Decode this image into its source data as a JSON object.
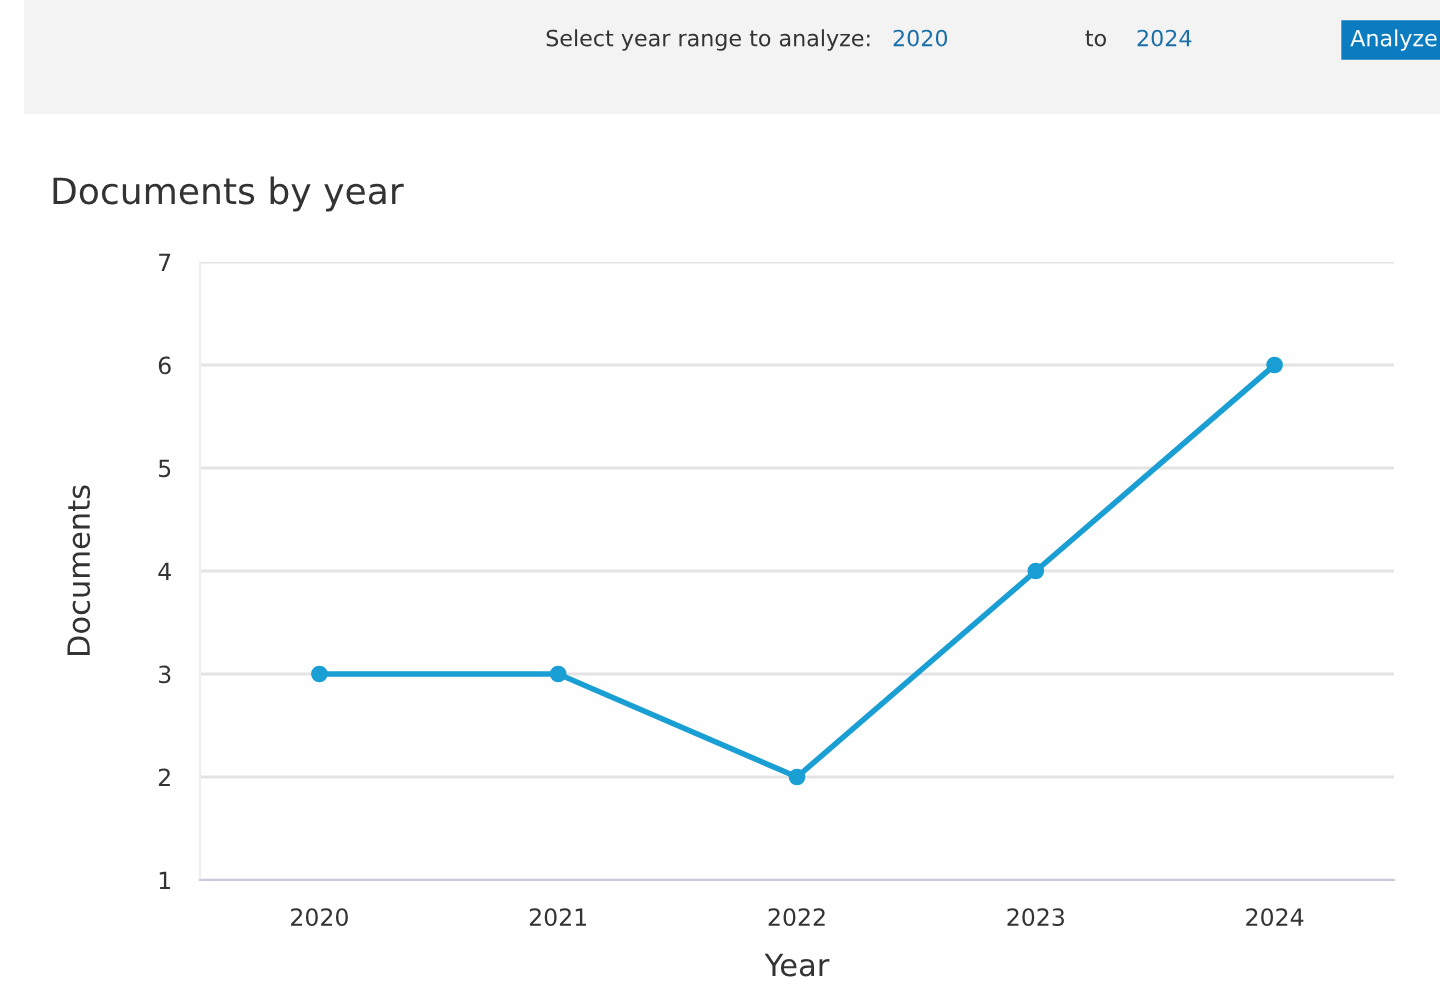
{
  "chart_data": {
    "type": "line",
    "title": "Documents by year",
    "xlabel": "Year",
    "ylabel": "Documents",
    "categories": [
      "2020",
      "2021",
      "2022",
      "2023",
      "2024"
    ],
    "series": [
      {
        "color": "#1a9fd4",
        "values": [
          3,
          3,
          2,
          4,
          6
        ]
      }
    ],
    "ylim": [
      1,
      7
    ],
    "yticks": [
      1,
      2,
      3,
      4,
      5,
      6,
      7
    ],
    "grid": "y",
    "marker": "circle",
    "line_style": "solid",
    "annotations": [
      "Select year range to analyze:",
      "2020",
      "to",
      "2024",
      "Analyze"
    ]
  }
}
